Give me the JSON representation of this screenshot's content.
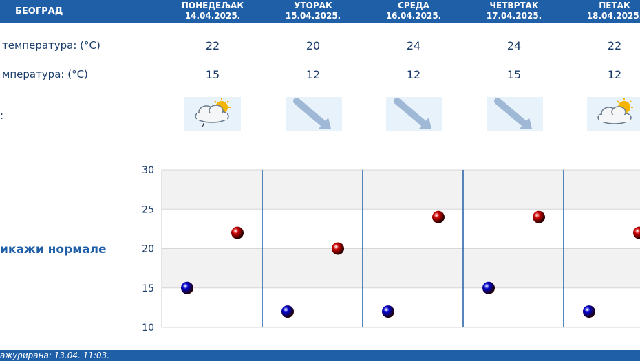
{
  "header": {
    "city": "БЕОГРАД",
    "days": [
      {
        "name": "ПОНЕДЕЉАК",
        "date": "14.04.2025."
      },
      {
        "name": "УТОРАК",
        "date": "15.04.2025."
      },
      {
        "name": "СРЕДА",
        "date": "16.04.2025."
      },
      {
        "name": "ЧЕТВРТАК",
        "date": "17.04.2025."
      },
      {
        "name": "ПЕТАК",
        "date": "18.04.2025."
      }
    ]
  },
  "rows": {
    "max_label": "температура: (°C)",
    "min_label": "мпература: (°C)",
    "icon_label": ":",
    "max_values": [
      "22",
      "20",
      "24",
      "24",
      "22"
    ],
    "min_values": [
      "15",
      "12",
      "12",
      "15",
      "12"
    ],
    "icons": [
      "partly-cloudy-rain-icon",
      "wind-arrow-icon",
      "wind-arrow-icon",
      "wind-arrow-icon",
      "partly-cloudy-icon"
    ]
  },
  "normals_toggle": "икажи нормале",
  "footer": {
    "updated": "ажурирана:  13.04.  11:03."
  },
  "chart_data": {
    "type": "scatter",
    "categories": [
      "14.04.2025.",
      "15.04.2025.",
      "16.04.2025.",
      "17.04.2025.",
      "18.04.2025."
    ],
    "series": [
      {
        "values": [
          22,
          20,
          24,
          24,
          22
        ],
        "color": "#cc0000"
      },
      {
        "values": [
          15,
          12,
          12,
          15,
          12
        ],
        "color": "#0000cc"
      }
    ],
    "ylim": [
      10,
      30
    ],
    "yticks": [
      "10",
      "15",
      "20",
      "25",
      "30"
    ],
    "grid": true
  }
}
